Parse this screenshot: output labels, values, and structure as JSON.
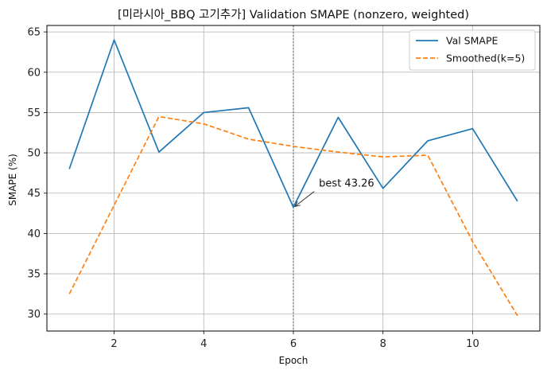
{
  "chart_data": {
    "type": "line",
    "title": "[미라시아_BBQ 고기추가] Validation SMAPE (nonzero, weighted)",
    "xlabel": "Epoch",
    "ylabel": "SMAPE (%)",
    "xlim": [
      0.5,
      11.5
    ],
    "ylim": [
      27.9,
      65.8
    ],
    "xticks": [
      2,
      4,
      6,
      8,
      10
    ],
    "yticks": [
      30,
      35,
      40,
      45,
      50,
      55,
      60,
      65
    ],
    "grid": true,
    "legend_position": "top-right",
    "x": [
      1,
      2,
      3,
      4,
      5,
      6,
      7,
      8,
      9,
      10,
      11
    ],
    "series": [
      {
        "name": "Val SMAPE",
        "style": "solid",
        "color": "#1f77b4",
        "values": [
          48.0,
          64.0,
          50.1,
          55.0,
          55.6,
          43.26,
          54.4,
          45.6,
          51.5,
          53.0,
          44.0
        ]
      },
      {
        "name": "Smoothed(k=5)",
        "style": "dashed",
        "color": "#ff7f0e",
        "values": [
          32.5,
          43.5,
          54.5,
          53.6,
          51.7,
          50.8,
          50.1,
          49.5,
          49.7,
          39.0,
          29.8
        ]
      }
    ],
    "vline": {
      "x": 6,
      "style": "dotted",
      "color": "#808080"
    },
    "annotation": {
      "text": "best 43.26",
      "x": 6,
      "y": 43.26,
      "text_x": 6.5,
      "text_y": 45.5
    }
  }
}
